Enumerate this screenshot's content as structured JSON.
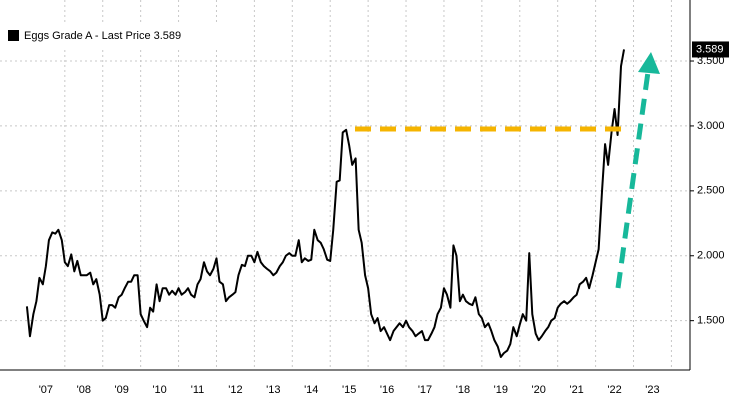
{
  "chart_data": {
    "type": "line",
    "series": [
      {
        "name": "Eggs Grade A - Last Price 3.589",
        "color": "#000000",
        "values": [
          1.61,
          1.38,
          1.55,
          1.65,
          1.83,
          1.78,
          1.92,
          2.12,
          2.18,
          2.17,
          2.2,
          2.12,
          1.95,
          1.92,
          2.01,
          1.88,
          1.96,
          1.85,
          1.85,
          1.85,
          1.87,
          1.78,
          1.82,
          1.7,
          1.5,
          1.52,
          1.62,
          1.62,
          1.6,
          1.68,
          1.7,
          1.75,
          1.8,
          1.8,
          1.85,
          1.85,
          1.55,
          1.5,
          1.45,
          1.6,
          1.57,
          1.78,
          1.65,
          1.75,
          1.75,
          1.7,
          1.73,
          1.7,
          1.75,
          1.7,
          1.72,
          1.75,
          1.7,
          1.68,
          1.78,
          1.82,
          1.95,
          1.88,
          1.85,
          1.9,
          1.98,
          1.8,
          1.78,
          1.65,
          1.68,
          1.7,
          1.72,
          1.85,
          1.93,
          1.92,
          2.0,
          2.0,
          1.95,
          2.03,
          1.95,
          1.92,
          1.9,
          1.88,
          1.85,
          1.87,
          1.92,
          1.95,
          2.0,
          2.02,
          2.0,
          2.0,
          2.12,
          1.95,
          1.98,
          1.96,
          1.97,
          2.2,
          2.12,
          2.1,
          2.05,
          1.97,
          1.96,
          2.2,
          2.57,
          2.58,
          2.95,
          2.97,
          2.85,
          2.7,
          2.75,
          2.2,
          2.1,
          1.85,
          1.75,
          1.55,
          1.48,
          1.52,
          1.42,
          1.45,
          1.4,
          1.35,
          1.42,
          1.45,
          1.48,
          1.45,
          1.5,
          1.45,
          1.42,
          1.38,
          1.4,
          1.42,
          1.35,
          1.35,
          1.4,
          1.45,
          1.55,
          1.6,
          1.75,
          1.7,
          1.6,
          2.08,
          2.0,
          1.65,
          1.7,
          1.65,
          1.63,
          1.62,
          1.68,
          1.55,
          1.52,
          1.45,
          1.48,
          1.42,
          1.35,
          1.3,
          1.22,
          1.25,
          1.27,
          1.32,
          1.45,
          1.38,
          1.47,
          1.55,
          1.5,
          2.02,
          1.55,
          1.4,
          1.35,
          1.38,
          1.42,
          1.45,
          1.5,
          1.52,
          1.6,
          1.63,
          1.65,
          1.63,
          1.65,
          1.68,
          1.7,
          1.78,
          1.8,
          1.83,
          1.75,
          1.85,
          1.95,
          2.05,
          2.5,
          2.86,
          2.7,
          2.95,
          3.13,
          2.93,
          3.46,
          3.589
        ]
      }
    ],
    "x": [
      2007.0,
      2007.08,
      2007.17,
      2007.25,
      2007.33,
      2007.42,
      2007.5,
      2007.58,
      2007.67,
      2007.75,
      2007.83,
      2007.92,
      2008.0,
      2008.08,
      2008.17,
      2008.25,
      2008.33,
      2008.42,
      2008.5,
      2008.58,
      2008.67,
      2008.75,
      2008.83,
      2008.92,
      2009.0,
      2009.08,
      2009.17,
      2009.25,
      2009.33,
      2009.42,
      2009.5,
      2009.58,
      2009.67,
      2009.75,
      2009.83,
      2009.92,
      2010.0,
      2010.08,
      2010.17,
      2010.25,
      2010.33,
      2010.42,
      2010.5,
      2010.58,
      2010.67,
      2010.75,
      2010.83,
      2010.92,
      2011.0,
      2011.08,
      2011.17,
      2011.25,
      2011.33,
      2011.42,
      2011.5,
      2011.58,
      2011.67,
      2011.75,
      2011.83,
      2011.92,
      2012.0,
      2012.08,
      2012.17,
      2012.25,
      2012.33,
      2012.42,
      2012.5,
      2012.58,
      2012.67,
      2012.75,
      2012.83,
      2012.92,
      2013.0,
      2013.08,
      2013.17,
      2013.25,
      2013.33,
      2013.42,
      2013.5,
      2013.58,
      2013.67,
      2013.75,
      2013.83,
      2013.92,
      2014.0,
      2014.08,
      2014.17,
      2014.25,
      2014.33,
      2014.42,
      2014.5,
      2014.58,
      2014.67,
      2014.75,
      2014.83,
      2014.92,
      2015.0,
      2015.08,
      2015.17,
      2015.25,
      2015.33,
      2015.42,
      2015.5,
      2015.58,
      2015.67,
      2015.75,
      2015.83,
      2015.92,
      2016.0,
      2016.08,
      2016.17,
      2016.25,
      2016.33,
      2016.42,
      2016.5,
      2016.58,
      2016.67,
      2016.75,
      2016.83,
      2016.92,
      2017.0,
      2017.08,
      2017.17,
      2017.25,
      2017.33,
      2017.42,
      2017.5,
      2017.58,
      2017.67,
      2017.75,
      2017.83,
      2017.92,
      2018.0,
      2018.08,
      2018.17,
      2018.25,
      2018.33,
      2018.42,
      2018.5,
      2018.58,
      2018.67,
      2018.75,
      2018.83,
      2018.92,
      2019.0,
      2019.08,
      2019.17,
      2019.25,
      2019.33,
      2019.42,
      2019.5,
      2019.58,
      2019.67,
      2019.75,
      2019.83,
      2019.92,
      2020.0,
      2020.08,
      2020.17,
      2020.25,
      2020.33,
      2020.42,
      2020.5,
      2020.58,
      2020.67,
      2020.75,
      2020.83,
      2020.92,
      2021.0,
      2021.08,
      2021.17,
      2021.25,
      2021.33,
      2021.42,
      2021.5,
      2021.58,
      2021.67,
      2021.75,
      2021.83,
      2021.92,
      2022.0,
      2022.08,
      2022.17,
      2022.25,
      2022.33,
      2022.42,
      2022.5,
      2022.58,
      2022.67,
      2022.75
    ],
    "xlim": [
      2006.29,
      2024.49
    ],
    "xticks": [
      {
        "value": 2007.5,
        "label": "'07"
      },
      {
        "value": 2008.5,
        "label": "'08"
      },
      {
        "value": 2009.5,
        "label": "'09"
      },
      {
        "value": 2010.5,
        "label": "'10"
      },
      {
        "value": 2011.5,
        "label": "'11"
      },
      {
        "value": 2012.5,
        "label": "'12"
      },
      {
        "value": 2013.5,
        "label": "'13"
      },
      {
        "value": 2014.5,
        "label": "'14"
      },
      {
        "value": 2015.5,
        "label": "'15"
      },
      {
        "value": 2016.5,
        "label": "'16"
      },
      {
        "value": 2017.5,
        "label": "'17"
      },
      {
        "value": 2018.5,
        "label": "'18"
      },
      {
        "value": 2019.5,
        "label": "'19"
      },
      {
        "value": 2020.5,
        "label": "'20"
      },
      {
        "value": 2021.5,
        "label": "'21"
      },
      {
        "value": 2022.5,
        "label": "'22"
      },
      {
        "value": 2023.5,
        "label": "'23"
      }
    ],
    "xgrid": [
      2008,
      2009,
      2010,
      2011,
      2012,
      2013,
      2014,
      2015,
      2016,
      2017,
      2018,
      2019,
      2020,
      2021,
      2022,
      2023,
      2024
    ],
    "ylim": [
      1.12,
      3.97
    ],
    "yticks": [
      {
        "value": 1.5,
        "label": "1.500"
      },
      {
        "value": 2.0,
        "label": "2.000"
      },
      {
        "value": 2.5,
        "label": "2.500"
      },
      {
        "value": 3.0,
        "label": "3.000"
      },
      {
        "value": 3.5,
        "label": "3.500"
      }
    ],
    "grid": true
  }
}
